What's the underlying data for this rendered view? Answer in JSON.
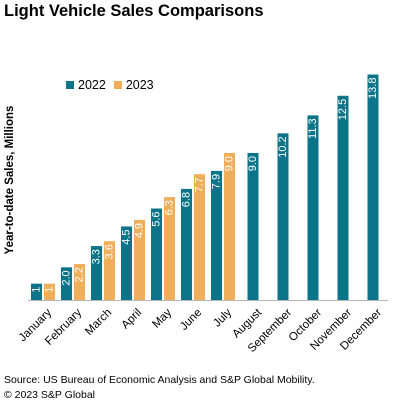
{
  "colors": {
    "series_2022": "#0c7489",
    "series_2023": "#eeae5a",
    "axis": "#b7b7b7",
    "label_light": "#ffffff"
  },
  "chart_data": {
    "type": "bar",
    "title": "Light Vehicle Sales Comparisons",
    "ylabel": "Year-to-date Sales, Millions",
    "xlabel": "",
    "legend_position": "top-left",
    "grid": false,
    "ylim": [
      0,
      14.2
    ],
    "categories": [
      "January",
      "February",
      "March",
      "April",
      "May",
      "June",
      "July",
      "August",
      "September",
      "October",
      "November",
      "December"
    ],
    "series": [
      {
        "name": "2022",
        "values": [
          1.0,
          2.0,
          3.3,
          4.5,
          5.6,
          6.8,
          7.9,
          9.0,
          10.2,
          11.3,
          12.5,
          13.8
        ],
        "labels": [
          "1",
          "2.0",
          "3.3",
          "4.5",
          "5.6",
          "6.8",
          "7.9",
          "9.0",
          "10.2",
          "11.3",
          "12.5",
          "13.8"
        ]
      },
      {
        "name": "2023",
        "values": [
          1.0,
          2.2,
          3.6,
          4.9,
          6.3,
          7.7,
          9.0,
          null,
          null,
          null,
          null,
          null
        ],
        "labels": [
          "1",
          "2.2",
          "3.6",
          "4.9",
          "6.3",
          "7.7",
          "9.0",
          null,
          null,
          null,
          null,
          null
        ]
      }
    ]
  },
  "footer": {
    "source": "Source: US Bureau of Economic Analysis and S&P Global Mobility.",
    "copyright": "© 2023 S&P Global"
  }
}
